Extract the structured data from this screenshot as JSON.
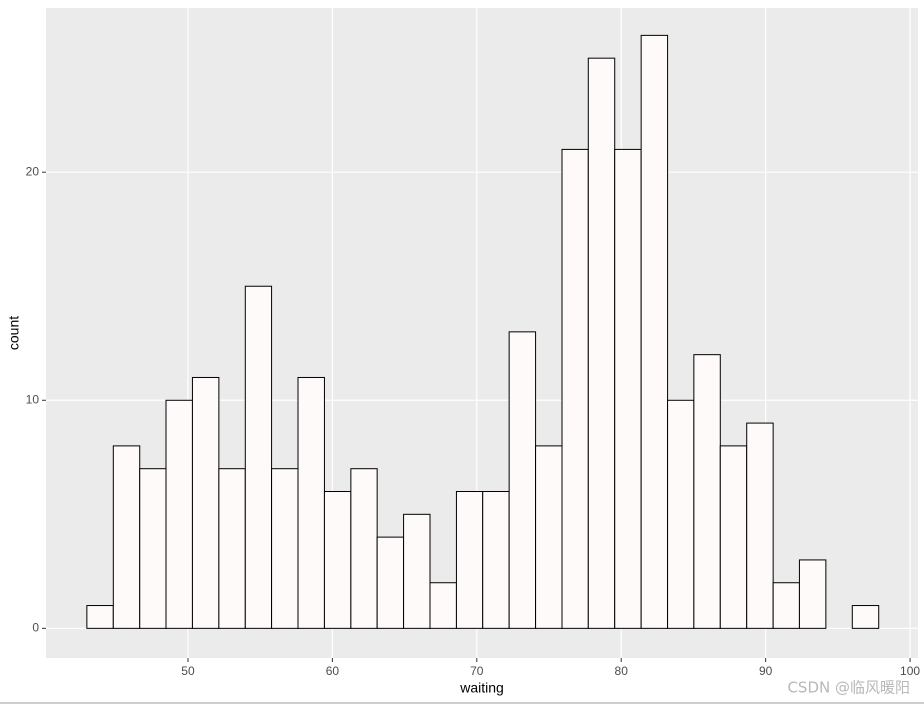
{
  "chart_data": {
    "type": "histogram",
    "x_label": "waiting",
    "y_label": "count",
    "bins": [
      43.0,
      44.83,
      46.66,
      48.48,
      50.31,
      52.14,
      53.97,
      55.79,
      57.62,
      59.45,
      61.28,
      63.1,
      64.93,
      66.76,
      68.59,
      70.41,
      72.24,
      74.07,
      75.9,
      77.72,
      79.55,
      81.38,
      83.21,
      85.03,
      86.86,
      88.69,
      90.52,
      92.34,
      94.17,
      96.0,
      97.83
    ],
    "values": [
      1,
      8,
      7,
      10,
      11,
      7,
      15,
      7,
      11,
      6,
      7,
      4,
      5,
      2,
      6,
      6,
      13,
      8,
      21,
      25,
      21,
      26,
      10,
      12,
      8,
      9,
      2,
      3,
      0,
      1
    ],
    "color": "#fffafa",
    "edge_color": "#000000",
    "xlim": [
      40.17,
      100.55
    ],
    "ylim": [
      -1.3,
      27.2
    ],
    "xticks": [
      50,
      60,
      70,
      80,
      90,
      100
    ],
    "yticks": [
      0,
      10,
      20
    ],
    "grid": true,
    "panel_color": "#ebebeb",
    "watermark": "CSDN @临风暖阳"
  }
}
